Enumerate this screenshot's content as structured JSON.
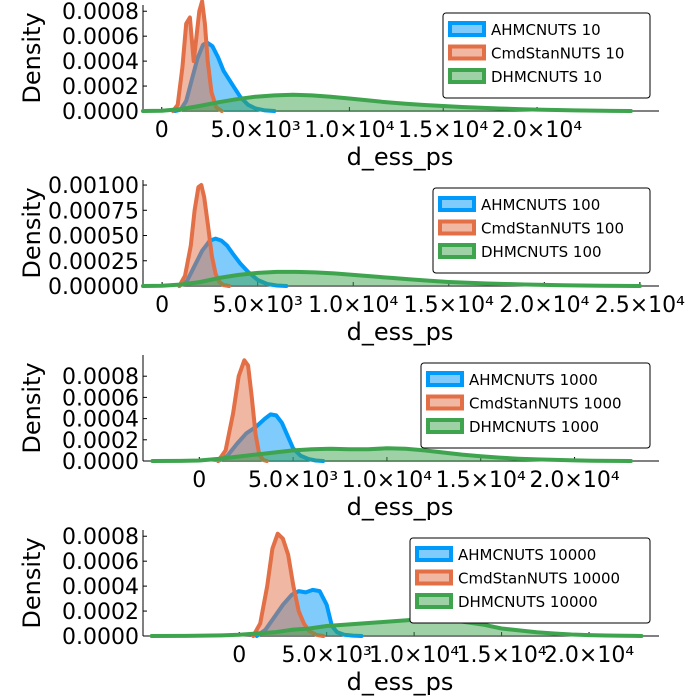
{
  "colors": {
    "ahmc": "#009AFA",
    "cmdstan": "#E26F46",
    "dhmc": "#3EA44E"
  },
  "chart_data": [
    {
      "type": "area",
      "xlabel": "d_ess_ps",
      "ylabel": "Density",
      "xlim": [
        -1000,
        26500
      ],
      "ylim": [
        0,
        0.00085
      ],
      "xticks": [
        0,
        5000,
        10000,
        15000,
        20000
      ],
      "xtick_labels": [
        "0",
        "5.0×10³",
        "1.0×10⁴",
        "1.5×10⁴",
        "2.0×10⁴"
      ],
      "yticks": [
        0,
        0.0002,
        0.0004,
        0.0006,
        0.0008
      ],
      "ytick_labels": [
        "0.0000",
        "0.0002",
        "0.0004",
        "0.0006",
        "0.0008"
      ],
      "legend": "top-right",
      "series": [
        {
          "name": "AHMCNUTS 10",
          "key": "ahmc",
          "x": [
            700,
            1000,
            1300,
            1600,
            1900,
            2200,
            2400,
            2700,
            3000,
            3300,
            3600,
            3900,
            4200,
            4600,
            5000,
            5500,
            6000
          ],
          "y": [
            0,
            1e-05,
            8e-05,
            0.00025,
            0.00042,
            0.00053,
            0.00055,
            0.00052,
            0.00043,
            0.00032,
            0.00025,
            0.00018,
            0.00011,
            5e-05,
            2e-05,
            5e-06,
            0
          ]
        },
        {
          "name": "CmdStanNUTS 10",
          "key": "cmdstan",
          "x": [
            600,
            850,
            1100,
            1300,
            1500,
            1700,
            1850,
            2000,
            2150,
            2300,
            2450,
            2650,
            2900,
            3200
          ],
          "y": [
            0,
            5e-05,
            0.00035,
            0.0007,
            0.00075,
            0.0004,
            0.0006,
            0.0008,
            0.00088,
            0.0007,
            0.0004,
            0.00015,
            3e-05,
            0
          ]
        },
        {
          "name": "DHMCNUTS 10",
          "key": "dhmc",
          "x": [
            -1000,
            0,
            1000,
            2000,
            3000,
            4000,
            5000,
            6000,
            7000,
            8000,
            9000,
            10000,
            11000,
            12000,
            13000,
            14000,
            15000,
            16000,
            17000,
            18000,
            19000,
            20000,
            21000,
            22000,
            23000,
            24000,
            25000
          ],
          "y": [
            0,
            2e-06,
            1.5e-05,
            4e-05,
            7e-05,
            9.5e-05,
            0.000115,
            0.000125,
            0.00013,
            0.000125,
            0.000115,
            0.0001,
            8.5e-05,
            7e-05,
            5.8e-05,
            4.8e-05,
            4e-05,
            3.2e-05,
            2.6e-05,
            2e-05,
            1.5e-05,
            1.1e-05,
            8e-06,
            5e-06,
            3e-06,
            1e-06,
            0
          ]
        }
      ]
    },
    {
      "type": "area",
      "xlabel": "d_ess_ps",
      "ylabel": "Density",
      "xlim": [
        -1000,
        26000
      ],
      "ylim": [
        0,
        0.00105
      ],
      "xticks": [
        0,
        5000,
        10000,
        15000,
        20000,
        25000
      ],
      "xtick_labels": [
        "0",
        "5.0×10³",
        "1.0×10⁴",
        "1.5×10⁴",
        "2.0×10⁴",
        "2.5×10⁴"
      ],
      "yticks": [
        0,
        0.00025,
        0.0005,
        0.00075,
        0.001
      ],
      "ytick_labels": [
        "0.00000",
        "0.00025",
        "0.00050",
        "0.00075",
        "0.00100"
      ],
      "legend": "top-right",
      "series": [
        {
          "name": "AHMCNUTS 100",
          "key": "ahmc",
          "x": [
            900,
            1300,
            1700,
            2100,
            2500,
            2800,
            3100,
            3400,
            3700,
            4100,
            4500,
            5000,
            5500,
            6000,
            6500
          ],
          "y": [
            0,
            5e-05,
            0.0002,
            0.00035,
            0.00045,
            0.00047,
            0.00045,
            0.0004,
            0.00032,
            0.00022,
            0.00014,
            6e-05,
            2e-05,
            5e-06,
            0
          ]
        },
        {
          "name": "CmdStanNUTS 100",
          "key": "cmdstan",
          "x": [
            900,
            1200,
            1500,
            1700,
            1900,
            2050,
            2200,
            2400,
            2600,
            2800,
            3000,
            3200,
            3500
          ],
          "y": [
            0,
            0.0001,
            0.0004,
            0.00075,
            0.00098,
            0.001,
            0.00088,
            0.0006,
            0.0003,
            0.00012,
            4e-05,
            1e-05,
            0
          ]
        },
        {
          "name": "DHMCNUTS 100",
          "key": "dhmc",
          "x": [
            -1000,
            0,
            1000,
            2000,
            3000,
            4000,
            5000,
            6000,
            7000,
            8000,
            9000,
            10000,
            11000,
            12000,
            13000,
            14000,
            15000,
            16000,
            17000,
            18000,
            19000,
            20000,
            21000,
            22000,
            23000,
            24000,
            25000
          ],
          "y": [
            0,
            3e-06,
            1.5e-05,
            4e-05,
            8e-05,
            0.00011,
            0.00013,
            0.00014,
            0.00014,
            0.000135,
            0.000125,
            0.00011,
            9.5e-05,
            8e-05,
            6.5e-05,
            5.2e-05,
            4e-05,
            3.2e-05,
            2.5e-05,
            2e-05,
            1.5e-05,
            1.1e-05,
            8e-06,
            5e-06,
            3e-06,
            1e-06,
            0
          ]
        }
      ]
    },
    {
      "type": "area",
      "xlabel": "d_ess_ps",
      "ylabel": "Density",
      "xlim": [
        -3000,
        24500
      ],
      "ylim": [
        0,
        0.001
      ],
      "xticks": [
        0,
        5000,
        10000,
        15000,
        20000
      ],
      "xtick_labels": [
        "0",
        "5.0×10³",
        "1.0×10⁴",
        "1.5×10⁴",
        "2.0×10⁴"
      ],
      "yticks": [
        0,
        0.0002,
        0.0004,
        0.0006,
        0.0008
      ],
      "ytick_labels": [
        "0.0000",
        "0.0002",
        "0.0004",
        "0.0006",
        "0.0008"
      ],
      "legend": "top-right",
      "series": [
        {
          "name": "AHMCNUTS 1000",
          "key": "ahmc",
          "x": [
            1000,
            1500,
            2000,
            2500,
            3000,
            3500,
            3800,
            4100,
            4400,
            4700,
            5000,
            5400,
            5800,
            6200,
            6600
          ],
          "y": [
            0,
            5e-05,
            0.00016,
            0.00026,
            0.00032,
            0.0004,
            0.00044,
            0.00043,
            0.00036,
            0.00024,
            0.00012,
            5e-05,
            2e-05,
            5e-06,
            0
          ]
        },
        {
          "name": "CmdStanNUTS 1000",
          "key": "cmdstan",
          "x": [
            1000,
            1400,
            1800,
            2100,
            2400,
            2600,
            2800,
            3000,
            3200,
            3400,
            3600
          ],
          "y": [
            0,
            0.0001,
            0.00045,
            0.0008,
            0.00095,
            0.0009,
            0.0006,
            0.00025,
            6e-05,
            1e-05,
            0
          ]
        },
        {
          "name": "DHMCNUTS 1000",
          "key": "dhmc",
          "x": [
            -2500,
            -1000,
            0,
            1000,
            2000,
            3000,
            4000,
            5000,
            6000,
            7000,
            8000,
            9000,
            10000,
            11000,
            12000,
            13000,
            14000,
            15000,
            16000,
            17000,
            18000,
            19000,
            20000,
            21000,
            22000,
            23000
          ],
          "y": [
            0,
            1e-06,
            5e-06,
            2e-05,
            4e-05,
            6e-05,
            8e-05,
            0.0001,
            0.00011,
            0.000115,
            0.00011,
            0.00011,
            0.00012,
            0.000115,
            0.0001,
            8e-05,
            6e-05,
            4.5e-05,
            3.2e-05,
            2.2e-05,
            1.5e-05,
            1e-05,
            6e-06,
            3e-06,
            1e-06,
            0
          ]
        }
      ]
    },
    {
      "type": "area",
      "xlabel": "d_ess_ps",
      "ylabel": "Density",
      "xlim": [
        -5500,
        24000
      ],
      "ylim": [
        0,
        0.00085
      ],
      "xticks": [
        0,
        5000,
        10000,
        15000,
        20000
      ],
      "xtick_labels": [
        "0",
        "5.0×10³",
        "1.0×10⁴",
        "1.5×10⁴",
        "2.0×10⁴"
      ],
      "yticks": [
        0,
        0.0002,
        0.0004,
        0.0006,
        0.0008
      ],
      "ytick_labels": [
        "0.0000",
        "0.0002",
        "0.0004",
        "0.0006",
        "0.0008"
      ],
      "legend": "top-right",
      "series": [
        {
          "name": "AHMCNUTS 10000",
          "key": "ahmc",
          "x": [
            1000,
            1500,
            2000,
            2500,
            3000,
            3400,
            3800,
            4200,
            4600,
            5000,
            5300,
            5600,
            6000,
            6500,
            7000
          ],
          "y": [
            0,
            5e-05,
            0.00015,
            0.00025,
            0.00033,
            0.00036,
            0.00035,
            0.00037,
            0.00036,
            0.00025,
            8e-05,
            3e-05,
            1e-05,
            3e-06,
            0
          ]
        },
        {
          "name": "CmdStanNUTS 10000",
          "key": "cmdstan",
          "x": [
            800,
            1200,
            1600,
            1900,
            2200,
            2500,
            2800,
            3100,
            3400,
            3700,
            4000,
            4400,
            4800
          ],
          "y": [
            0,
            0.0001,
            0.0004,
            0.0007,
            0.00082,
            0.00078,
            0.00065,
            0.0004,
            0.0002,
            0.0001,
            4e-05,
            1e-05,
            0
          ]
        },
        {
          "name": "DHMCNUTS 10000",
          "key": "dhmc",
          "x": [
            -5000,
            -3000,
            -1000,
            0,
            1000,
            2000,
            3000,
            4000,
            5000,
            6000,
            7000,
            8000,
            9000,
            10000,
            11000,
            12000,
            13000,
            14000,
            15000,
            16000,
            17000,
            18000,
            19000,
            20000,
            21000,
            22000,
            23000
          ],
          "y": [
            0,
            1e-06,
            5e-06,
            1e-05,
            2e-05,
            3e-05,
            5e-05,
            6e-05,
            8e-05,
            9e-05,
            0.0001,
            0.00011,
            0.00012,
            0.00013,
            0.00014,
            0.00013,
            0.00011,
            9e-05,
            6e-05,
            4.5e-05,
            3e-05,
            2e-05,
            1.2e-05,
            7e-06,
            4e-06,
            2e-06,
            0
          ]
        }
      ]
    }
  ]
}
